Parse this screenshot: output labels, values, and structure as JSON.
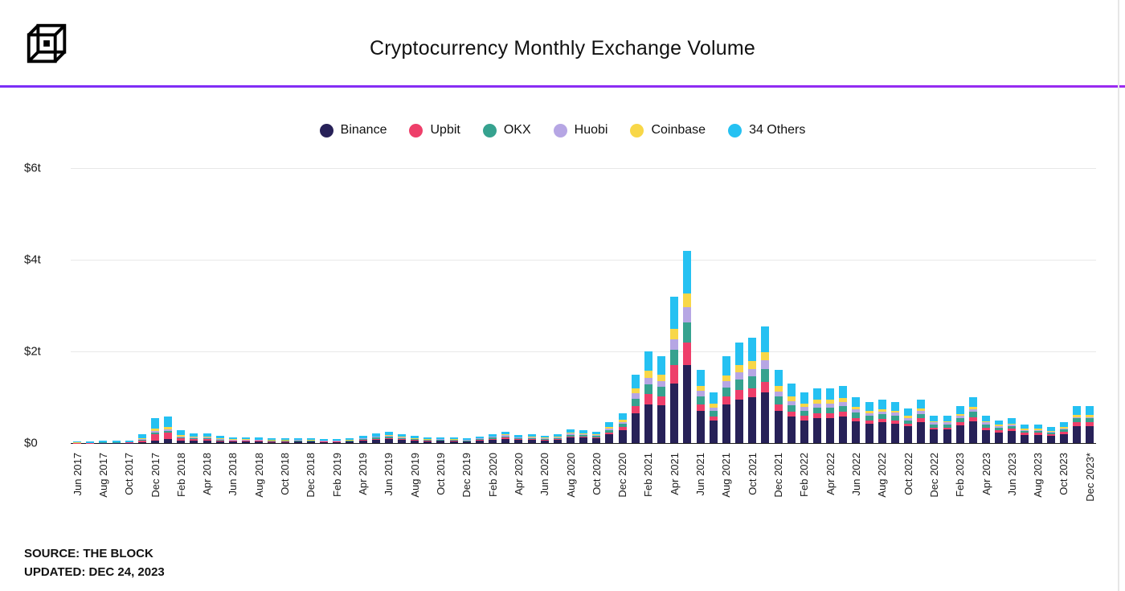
{
  "header": {
    "logo": "the-block-cube-logo"
  },
  "footer": {
    "source": "SOURCE: THE BLOCK",
    "updated": "UPDATED: DEC 24, 2023"
  },
  "chart_data": {
    "type": "bar",
    "stacked": true,
    "title": "Cryptocurrency Monthly Exchange Volume",
    "unit": "trillion USD",
    "ylim": [
      0,
      6
    ],
    "grid": true,
    "legend_position": "top",
    "yticks": [
      {
        "value": 0,
        "label": "$0"
      },
      {
        "value": 2,
        "label": "$2t"
      },
      {
        "value": 4,
        "label": "$4t"
      },
      {
        "value": 6,
        "label": "$6t"
      }
    ],
    "x_tick_every": 2,
    "categories": [
      "Jun 2017",
      "Jul 2017",
      "Aug 2017",
      "Sep 2017",
      "Oct 2017",
      "Nov 2017",
      "Dec 2017",
      "Jan 2018",
      "Feb 2018",
      "Mar 2018",
      "Apr 2018",
      "May 2018",
      "Jun 2018",
      "Jul 2018",
      "Aug 2018",
      "Sep 2018",
      "Oct 2018",
      "Nov 2018",
      "Dec 2018",
      "Jan 2019",
      "Feb 2019",
      "Mar 2019",
      "Apr 2019",
      "May 2019",
      "Jun 2019",
      "Jul 2019",
      "Aug 2019",
      "Sep 2019",
      "Oct 2019",
      "Nov 2019",
      "Dec 2019",
      "Jan 2020",
      "Feb 2020",
      "Mar 2020",
      "Apr 2020",
      "May 2020",
      "Jun 2020",
      "Jul 2020",
      "Aug 2020",
      "Sep 2020",
      "Oct 2020",
      "Nov 2020",
      "Dec 2020",
      "Jan 2021",
      "Feb 2021",
      "Mar 2021",
      "Apr 2021",
      "May 2021",
      "Jun 2021",
      "Jul 2021",
      "Aug 2021",
      "Sep 2021",
      "Oct 2021",
      "Nov 2021",
      "Dec 2021",
      "Jan 2022",
      "Feb 2022",
      "Mar 2022",
      "Apr 2022",
      "May 2022",
      "Jun 2022",
      "Jul 2022",
      "Aug 2022",
      "Sep 2022",
      "Oct 2022",
      "Nov 2022",
      "Dec 2022",
      "Jan 2023",
      "Feb 2023",
      "Mar 2023",
      "Apr 2023",
      "May 2023",
      "Jun 2023",
      "Jul 2023",
      "Aug 2023",
      "Sep 2023",
      "Oct 2023",
      "Nov 2023",
      "Dec 2023*"
    ],
    "series": [
      {
        "name": "Binance",
        "color": "#272158",
        "values": [
          0,
          0.001,
          0.003,
          0.004,
          0.005,
          0.02,
          0.06,
          0.09,
          0.06,
          0.05,
          0.05,
          0.04,
          0.03,
          0.03,
          0.03,
          0.025,
          0.025,
          0.03,
          0.028,
          0.022,
          0.022,
          0.03,
          0.05,
          0.07,
          0.08,
          0.065,
          0.05,
          0.04,
          0.045,
          0.04,
          0.035,
          0.055,
          0.075,
          0.095,
          0.065,
          0.075,
          0.06,
          0.075,
          0.12,
          0.115,
          0.1,
          0.19,
          0.28,
          0.65,
          0.85,
          0.82,
          1.3,
          1.7,
          0.7,
          0.49,
          0.85,
          0.95,
          1.0,
          1.1,
          0.7,
          0.58,
          0.5,
          0.55,
          0.55,
          0.58,
          0.47,
          0.42,
          0.45,
          0.43,
          0.36,
          0.46,
          0.29,
          0.29,
          0.39,
          0.48,
          0.28,
          0.23,
          0.26,
          0.18,
          0.18,
          0.16,
          0.2,
          0.36,
          0.36
        ]
      },
      {
        "name": "Upbit",
        "color": "#ee3f6a",
        "values": [
          0.002,
          0.002,
          0.005,
          0.005,
          0.006,
          0.04,
          0.14,
          0.13,
          0.05,
          0.04,
          0.03,
          0.02,
          0.015,
          0.015,
          0.015,
          0.012,
          0.012,
          0.013,
          0.012,
          0.009,
          0.009,
          0.01,
          0.015,
          0.02,
          0.025,
          0.02,
          0.014,
          0.011,
          0.012,
          0.011,
          0.009,
          0.013,
          0.018,
          0.022,
          0.015,
          0.017,
          0.014,
          0.017,
          0.028,
          0.027,
          0.023,
          0.045,
          0.065,
          0.16,
          0.22,
          0.2,
          0.4,
          0.5,
          0.15,
          0.09,
          0.16,
          0.2,
          0.2,
          0.23,
          0.14,
          0.11,
          0.09,
          0.1,
          0.1,
          0.1,
          0.08,
          0.07,
          0.08,
          0.07,
          0.06,
          0.08,
          0.05,
          0.05,
          0.07,
          0.09,
          0.06,
          0.05,
          0.05,
          0.04,
          0.04,
          0.03,
          0.05,
          0.09,
          0.09
        ]
      },
      {
        "name": "OKX",
        "color": "#36a28f",
        "values": [
          0.003,
          0.002,
          0.004,
          0.004,
          0.004,
          0.01,
          0.03,
          0.04,
          0.02,
          0.02,
          0.02,
          0.015,
          0.012,
          0.012,
          0.012,
          0.01,
          0.01,
          0.011,
          0.01,
          0.008,
          0.008,
          0.01,
          0.018,
          0.025,
          0.03,
          0.024,
          0.018,
          0.015,
          0.016,
          0.015,
          0.012,
          0.018,
          0.024,
          0.03,
          0.02,
          0.022,
          0.019,
          0.022,
          0.035,
          0.034,
          0.029,
          0.05,
          0.07,
          0.16,
          0.21,
          0.2,
          0.33,
          0.44,
          0.17,
          0.12,
          0.2,
          0.24,
          0.25,
          0.28,
          0.17,
          0.14,
          0.12,
          0.13,
          0.13,
          0.13,
          0.11,
          0.1,
          0.1,
          0.1,
          0.08,
          0.1,
          0.07,
          0.07,
          0.09,
          0.11,
          0.07,
          0.06,
          0.06,
          0.05,
          0.05,
          0.04,
          0.05,
          0.09,
          0.09
        ]
      },
      {
        "name": "Huobi",
        "color": "#b6a6e4",
        "values": [
          0.001,
          0.001,
          0.002,
          0.003,
          0.003,
          0.01,
          0.03,
          0.04,
          0.02,
          0.02,
          0.02,
          0.015,
          0.012,
          0.012,
          0.012,
          0.01,
          0.01,
          0.011,
          0.01,
          0.008,
          0.008,
          0.01,
          0.015,
          0.02,
          0.022,
          0.018,
          0.014,
          0.012,
          0.012,
          0.011,
          0.01,
          0.014,
          0.018,
          0.022,
          0.015,
          0.016,
          0.014,
          0.016,
          0.025,
          0.024,
          0.021,
          0.035,
          0.05,
          0.11,
          0.15,
          0.14,
          0.24,
          0.32,
          0.12,
          0.08,
          0.14,
          0.16,
          0.17,
          0.19,
          0.12,
          0.09,
          0.08,
          0.08,
          0.08,
          0.09,
          0.07,
          0.06,
          0.06,
          0.06,
          0.05,
          0.06,
          0.04,
          0.04,
          0.05,
          0.06,
          0.04,
          0.03,
          0.03,
          0.02,
          0.02,
          0.02,
          0.02,
          0.03,
          0.03
        ]
      },
      {
        "name": "Coinbase",
        "color": "#f8d748",
        "values": [
          0.004,
          0.003,
          0.006,
          0.005,
          0.005,
          0.02,
          0.06,
          0.06,
          0.03,
          0.02,
          0.02,
          0.015,
          0.012,
          0.012,
          0.01,
          0.008,
          0.008,
          0.009,
          0.008,
          0.006,
          0.006,
          0.007,
          0.01,
          0.015,
          0.017,
          0.013,
          0.01,
          0.008,
          0.008,
          0.008,
          0.006,
          0.009,
          0.012,
          0.016,
          0.011,
          0.012,
          0.01,
          0.012,
          0.02,
          0.019,
          0.016,
          0.03,
          0.045,
          0.11,
          0.15,
          0.14,
          0.23,
          0.31,
          0.11,
          0.08,
          0.13,
          0.16,
          0.17,
          0.19,
          0.11,
          0.09,
          0.07,
          0.08,
          0.08,
          0.08,
          0.06,
          0.05,
          0.05,
          0.05,
          0.04,
          0.05,
          0.03,
          0.03,
          0.04,
          0.05,
          0.03,
          0.03,
          0.03,
          0.02,
          0.02,
          0.02,
          0.03,
          0.05,
          0.05
        ]
      },
      {
        "name": "34 Others",
        "color": "#25c1f2",
        "values": [
          0.03,
          0.021,
          0.04,
          0.029,
          0.027,
          0.1,
          0.23,
          0.22,
          0.1,
          0.07,
          0.08,
          0.055,
          0.039,
          0.039,
          0.041,
          0.035,
          0.035,
          0.036,
          0.032,
          0.027,
          0.027,
          0.033,
          0.052,
          0.07,
          0.076,
          0.06,
          0.044,
          0.034,
          0.037,
          0.035,
          0.028,
          0.041,
          0.053,
          0.065,
          0.044,
          0.048,
          0.043,
          0.048,
          0.072,
          0.071,
          0.061,
          0.1,
          0.14,
          0.31,
          0.42,
          0.4,
          0.7,
          0.93,
          0.35,
          0.24,
          0.42,
          0.49,
          0.51,
          0.56,
          0.36,
          0.29,
          0.24,
          0.26,
          0.26,
          0.27,
          0.21,
          0.2,
          0.21,
          0.19,
          0.16,
          0.2,
          0.12,
          0.12,
          0.16,
          0.21,
          0.12,
          0.1,
          0.12,
          0.09,
          0.09,
          0.08,
          0.1,
          0.18,
          0.18
        ]
      }
    ]
  }
}
